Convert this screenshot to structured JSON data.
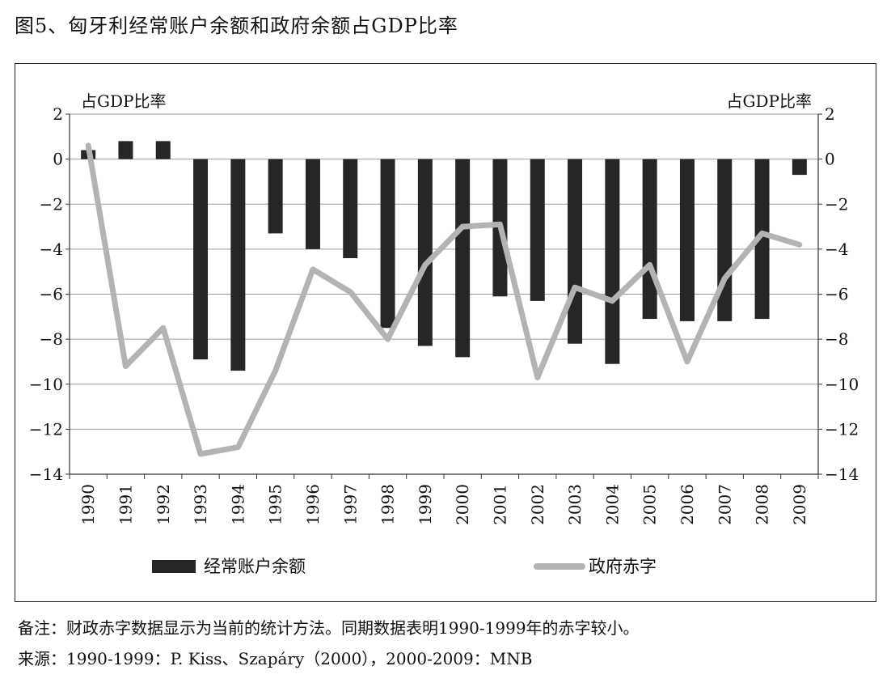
{
  "figure_title": "图5、匈牙利经常账户余额和政府余额占GDP比率",
  "note": "备注：财政赤字数据显示为当前的统计方法。同期数据表明1990-1999年的赤字较小。",
  "source": "来源：1990-1999：P. Kiss、Szapáry（2000），2000-2009：MNB",
  "chart_data": {
    "type": "bar",
    "categories": [
      "1990",
      "1991",
      "1992",
      "1993",
      "1994",
      "1995",
      "1996",
      "1997",
      "1998",
      "1999",
      "2000",
      "2001",
      "2002",
      "2003",
      "2004",
      "2005",
      "2006",
      "2007",
      "2008",
      "2009"
    ],
    "y_left_label": "占GDP比率",
    "y_right_label": "占GDP比率",
    "ylim": [
      -14,
      2
    ],
    "yticks": [
      2,
      0,
      -2,
      -4,
      -6,
      -8,
      -10,
      -12,
      -14
    ],
    "grid": true,
    "legend_position": "bottom",
    "series": [
      {
        "name": "经常账户余额",
        "type": "bar",
        "color": "#262626",
        "values": [
          0.4,
          0.8,
          0.8,
          -8.9,
          -9.4,
          -3.3,
          -4.0,
          -4.4,
          -7.5,
          -8.3,
          -8.8,
          -6.1,
          -6.3,
          -8.2,
          -9.1,
          -7.1,
          -7.2,
          -7.2,
          -7.1,
          -0.7
        ]
      },
      {
        "name": "政府赤字",
        "type": "line",
        "color": "#b3b3b3",
        "values": [
          0.6,
          -9.2,
          -7.5,
          -13.1,
          -12.8,
          -9.4,
          -4.9,
          -5.9,
          -8.0,
          -4.7,
          -3.0,
          -2.9,
          -9.7,
          -5.7,
          -6.3,
          -4.7,
          -9.0,
          -5.3,
          -3.3,
          -3.8
        ]
      }
    ]
  }
}
